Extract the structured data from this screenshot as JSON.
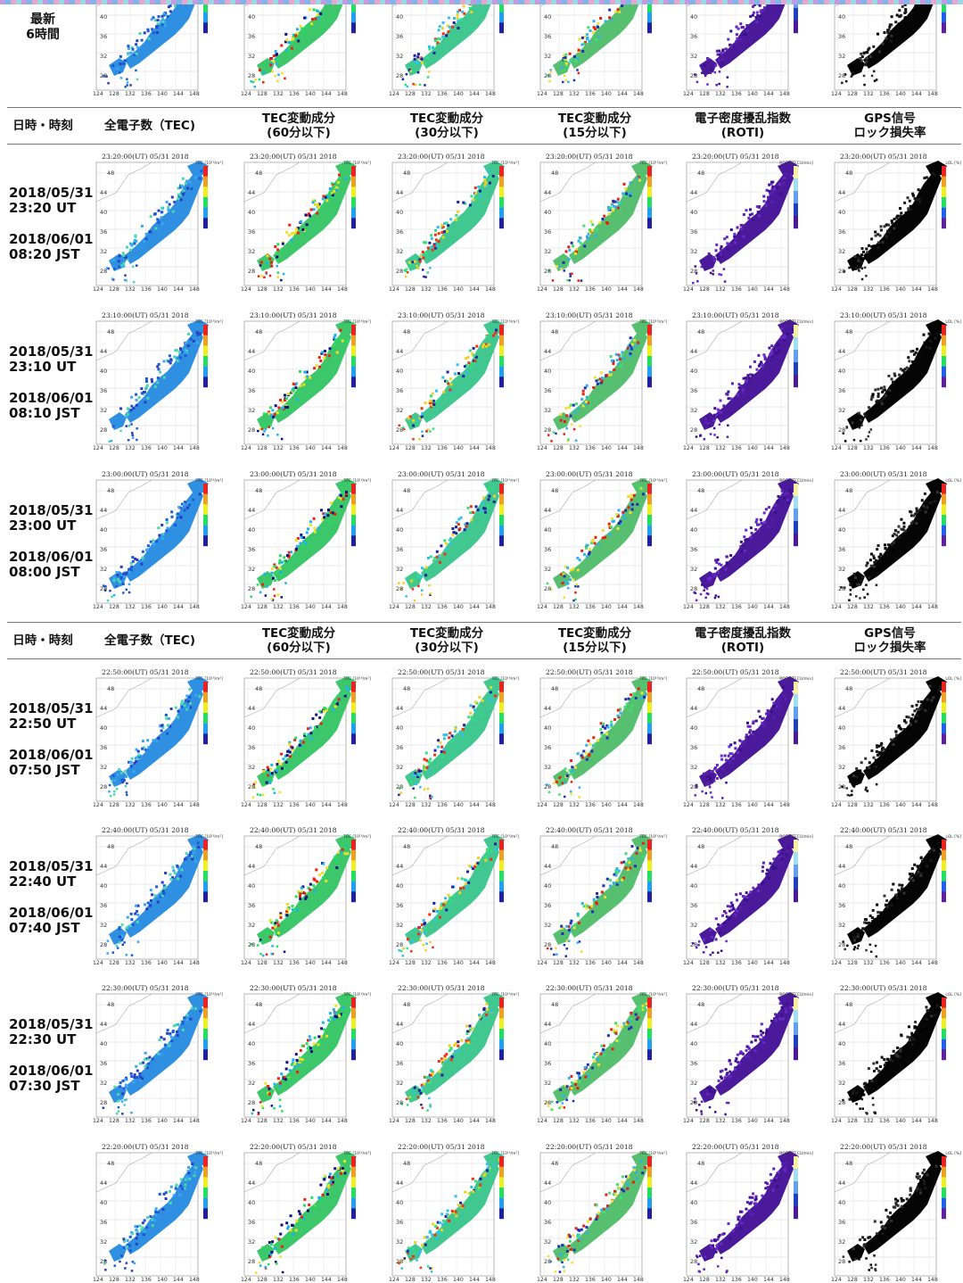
{
  "top_strip": {
    "colors": [
      "#c39be0",
      "#7fb6e8",
      "#e5a6cf",
      "#9dd6e4"
    ]
  },
  "latest": {
    "label": "最新\n6時間"
  },
  "header": {
    "col0": "日時・時刻",
    "col1": "全電子数（TEC)",
    "col2": "TEC変動成分\n(60分以下)",
    "col3": "TEC変動成分\n(30分以下)",
    "col4": "TEC変動成分\n(15分以下)",
    "col5": "電子密度擾乱指数\n(ROTI)",
    "col6": "GPS信号\nロック損失率"
  },
  "axis": {
    "lat_labels": [
      "48",
      "44",
      "40",
      "36",
      "32",
      "28"
    ],
    "lon_labels": [
      "124",
      "128",
      "132",
      "136",
      "140",
      "144",
      "148"
    ],
    "unit_tec": "TEC [10¹⁶/m²]",
    "unit_roti": "ROTI [TECU/min]",
    "unit_lol": "LOL [%]"
  },
  "rows": [
    {
      "ut_date": "2018/05/31",
      "ut_time": "23:20 UT",
      "jst_date": "2018/06/01",
      "jst_time": "08:20 JST",
      "map_title": "23:20:00(UT)  05/31 2018"
    },
    {
      "ut_date": "2018/05/31",
      "ut_time": "23:10 UT",
      "jst_date": "2018/06/01",
      "jst_time": "08:10 JST",
      "map_title": "23:10:00(UT)  05/31 2018"
    },
    {
      "ut_date": "2018/05/31",
      "ut_time": "23:00 UT",
      "jst_date": "2018/06/01",
      "jst_time": "08:00 JST",
      "map_title": "23:00:00(UT)  05/31 2018"
    },
    {
      "ut_date": "2018/05/31",
      "ut_time": "22:50 UT",
      "jst_date": "2018/06/01",
      "jst_time": "07:50 JST",
      "map_title": "22:50:00(UT)  05/31 2018"
    },
    {
      "ut_date": "2018/05/31",
      "ut_time": "22:40 UT",
      "jst_date": "2018/06/01",
      "jst_time": "07:40 JST",
      "map_title": "22:40:00(UT)  05/31 2018"
    },
    {
      "ut_date": "2018/05/31",
      "ut_time": "22:30 UT",
      "jst_date": "2018/06/01",
      "jst_time": "07:30 JST",
      "map_title": "22:30:00(UT)  05/31 2018"
    },
    {
      "ut_date": "",
      "ut_time": "",
      "jst_date": "",
      "jst_time": "",
      "map_title": "22:20:00(UT)  05/31 2018"
    }
  ],
  "map_styles": [
    {
      "kind": "tec",
      "fill": "#2f8fe0",
      "accent": "#4fd3a0"
    },
    {
      "kind": "tec60",
      "fill": "#3cc86a",
      "accent": "#f03020"
    },
    {
      "kind": "tec30",
      "fill": "#40c890",
      "accent": "#f05a20"
    },
    {
      "kind": "tec15",
      "fill": "#56c070",
      "accent": "#e83020"
    },
    {
      "kind": "roti",
      "fill": "#4a1a9a",
      "accent": "#5a2ab0"
    },
    {
      "kind": "lol",
      "fill": "#050505",
      "accent": "#222222"
    }
  ]
}
